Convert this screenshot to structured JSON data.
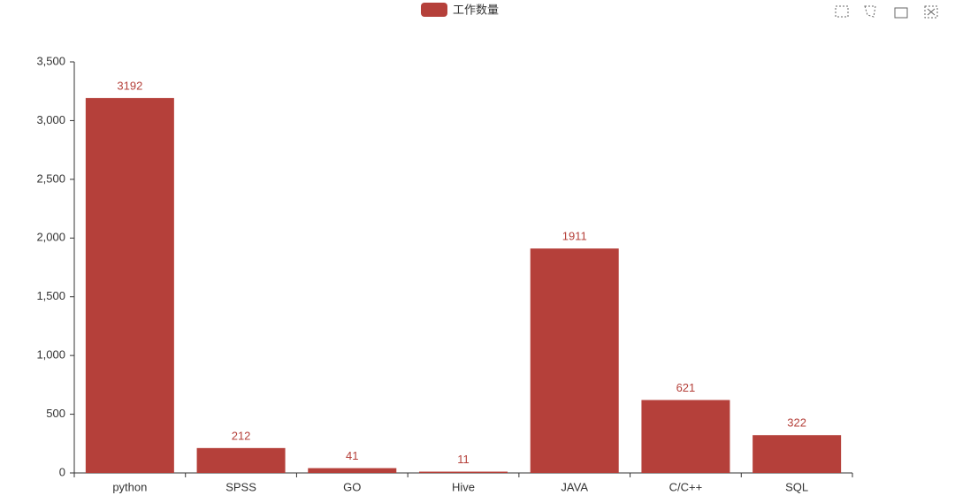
{
  "chart_data": {
    "type": "bar",
    "categories": [
      "python",
      "SPSS",
      "GO",
      "Hive",
      "JAVA",
      "C/C++",
      "SQL"
    ],
    "series": [
      {
        "name": "工作数量",
        "color": "#b5403a",
        "values": [
          3192,
          212,
          41,
          11,
          1911,
          621,
          322
        ]
      }
    ],
    "ylim": [
      0,
      3500
    ],
    "yticks": [
      0,
      500,
      {
        "value": 1000,
        "label": "1,000"
      },
      {
        "value": 1500,
        "label": "1,500"
      },
      {
        "value": 2000,
        "label": "2,000"
      },
      {
        "value": 2500,
        "label": "2,500"
      },
      {
        "value": 3000,
        "label": "3,000"
      },
      {
        "value": 3500,
        "label": "3,500"
      }
    ],
    "grid": false
  }
}
